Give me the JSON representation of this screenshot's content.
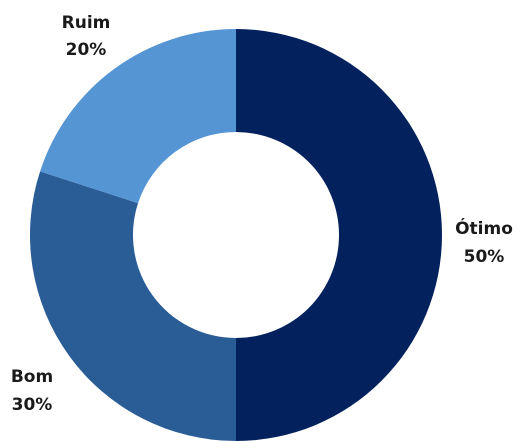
{
  "chart_data": {
    "type": "pie",
    "donut": true,
    "slices": [
      {
        "label": "Ótimo",
        "value": 50,
        "value_label": "50%",
        "color": "#03215c"
      },
      {
        "label": "Bom",
        "value": 30,
        "value_label": "30%",
        "color": "#2a5d96"
      },
      {
        "label": "Ruim",
        "value": 20,
        "value_label": "20%",
        "color": "#5695d4"
      }
    ],
    "start": "top",
    "direction": "clockwise",
    "legend": "none"
  }
}
